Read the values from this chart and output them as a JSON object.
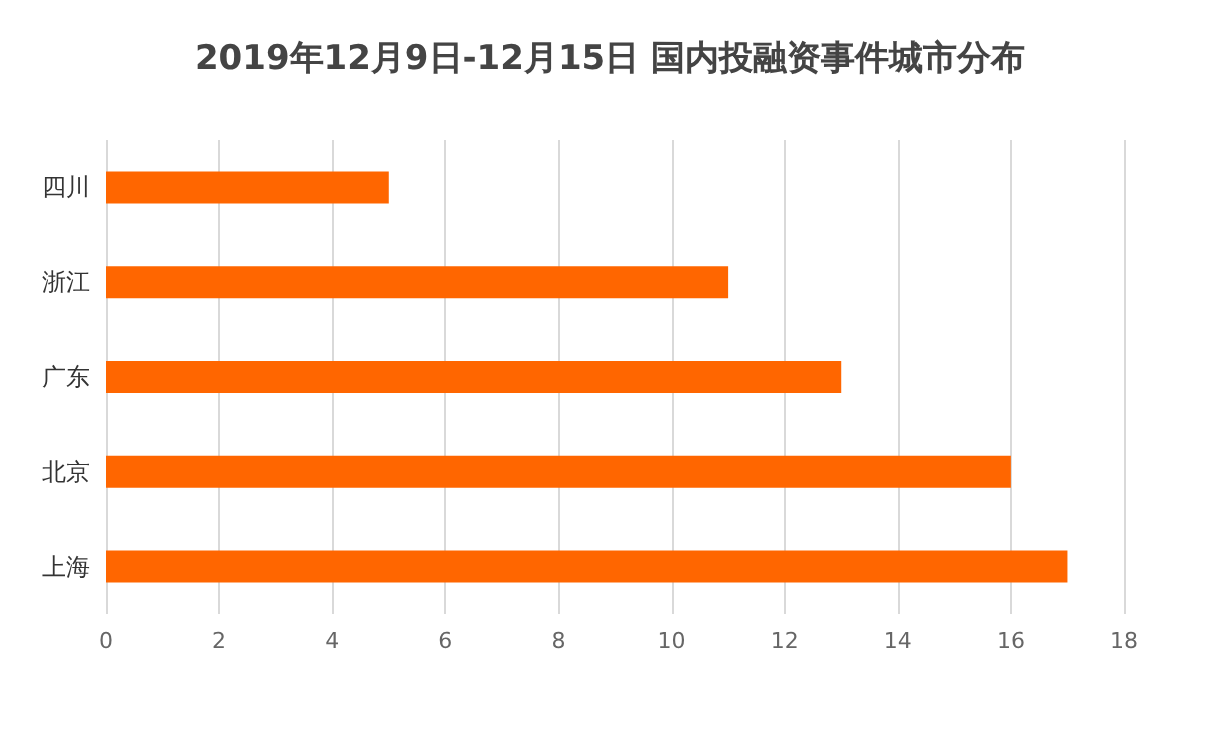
{
  "chart_data": {
    "type": "bar",
    "orientation": "horizontal",
    "title": "2019年12月9日-12月15日 国内投融资事件城市分布",
    "categories": [
      "四川",
      "浙江",
      "广东",
      "北京",
      "上海"
    ],
    "values": [
      5,
      11,
      13,
      16,
      17
    ],
    "color": "#ff6600",
    "xlim": [
      0,
      18
    ],
    "xticks": [
      0,
      2,
      4,
      6,
      8,
      10,
      12,
      14,
      16,
      18
    ],
    "grid": "x"
  }
}
